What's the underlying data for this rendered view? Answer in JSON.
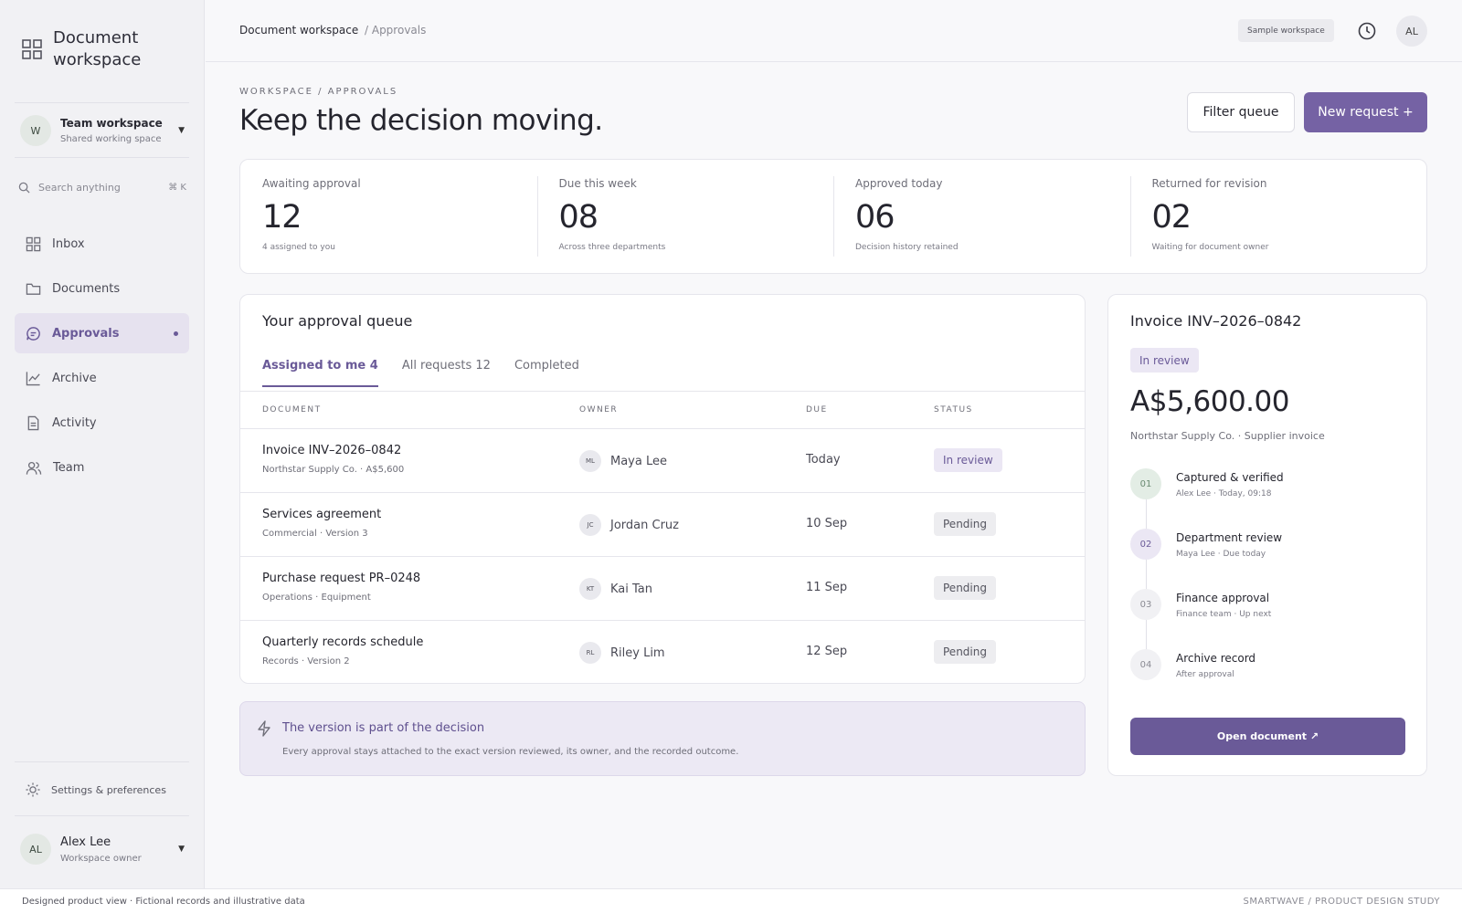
{
  "sidebar": {
    "brand": "Document workspace",
    "workspace": {
      "initial": "W",
      "name": "Team workspace",
      "subtitle": "Shared working space"
    },
    "search": {
      "placeholder": "Search anything",
      "shortcut": "⌘ K"
    },
    "nav": [
      {
        "label": "Inbox",
        "icon": "grid-icon"
      },
      {
        "label": "Documents",
        "icon": "folder-icon"
      },
      {
        "label": "Approvals",
        "icon": "chat-icon",
        "active": true
      },
      {
        "label": "Archive",
        "icon": "chart-line-icon"
      },
      {
        "label": "Activity",
        "icon": "file-icon"
      },
      {
        "label": "Team",
        "icon": "users-icon"
      }
    ],
    "settings_label": "Settings & preferences",
    "user": {
      "initials": "AL",
      "name": "Alex Lee",
      "role": "Workspace owner"
    }
  },
  "topbar": {
    "crumb_main": "Document workspace",
    "crumb_sub": "/ Approvals",
    "sample_badge": "Sample workspace",
    "avatar": "AL"
  },
  "header": {
    "eyebrow": "WORKSPACE / APPROVALS",
    "title": "Keep the decision moving.",
    "filter_label": "Filter queue",
    "new_label": "New request +"
  },
  "stats": [
    {
      "label": "Awaiting approval",
      "value": "12",
      "sub": "4 assigned to you"
    },
    {
      "label": "Due this week",
      "value": "08",
      "sub": "Across three departments"
    },
    {
      "label": "Approved today",
      "value": "06",
      "sub": "Decision history retained"
    },
    {
      "label": "Returned for revision",
      "value": "02",
      "sub": "Waiting for document owner"
    }
  ],
  "queue": {
    "title": "Your approval queue",
    "tabs": [
      "Assigned to me 4",
      "All requests 12",
      "Completed"
    ],
    "columns": [
      "DOCUMENT",
      "OWNER",
      "DUE",
      "STATUS"
    ],
    "rows": [
      {
        "name": "Invoice INV–2026–0842",
        "sub": "Northstar Supply Co. · A$5,600",
        "owner_initials": "ML",
        "owner": "Maya Lee",
        "due": "Today",
        "status": "In review"
      },
      {
        "name": "Services agreement",
        "sub": "Commercial · Version 3",
        "owner_initials": "JC",
        "owner": "Jordan Cruz",
        "due": "10 Sep",
        "status": "Pending"
      },
      {
        "name": "Purchase request PR–0248",
        "sub": "Operations · Equipment",
        "owner_initials": "KT",
        "owner": "Kai Tan",
        "due": "11 Sep",
        "status": "Pending"
      },
      {
        "name": "Quarterly records schedule",
        "sub": "Records · Version 2",
        "owner_initials": "RL",
        "owner": "Riley Lim",
        "due": "12 Sep",
        "status": "Pending"
      }
    ]
  },
  "note": {
    "title": "The version is part of the decision",
    "body": "Every approval stays attached to the exact version reviewed, its owner, and the recorded outcome."
  },
  "detail": {
    "title": "Invoice INV–2026–0842",
    "badge": "In review",
    "amount": "A$5,600.00",
    "sub": "Northstar Supply Co. · Supplier invoice",
    "steps": [
      {
        "num": "01",
        "title": "Captured & verified",
        "sub": "Alex Lee · Today, 09:18"
      },
      {
        "num": "02",
        "title": "Department review",
        "sub": "Maya Lee · Due today"
      },
      {
        "num": "03",
        "title": "Finance approval",
        "sub": "Finance team · Up next"
      },
      {
        "num": "04",
        "title": "Archive record",
        "sub": "After approval"
      }
    ],
    "open_label": "Open document ↗"
  },
  "footer": {
    "left": "Designed product view · Fictional records and illustrative data",
    "right": "SMARTWAVE / PRODUCT DESIGN STUDY"
  },
  "colors": {
    "accent": "#7562a4",
    "accent_dark": "#6a5a98",
    "accent_soft": "#ebe7f4"
  }
}
